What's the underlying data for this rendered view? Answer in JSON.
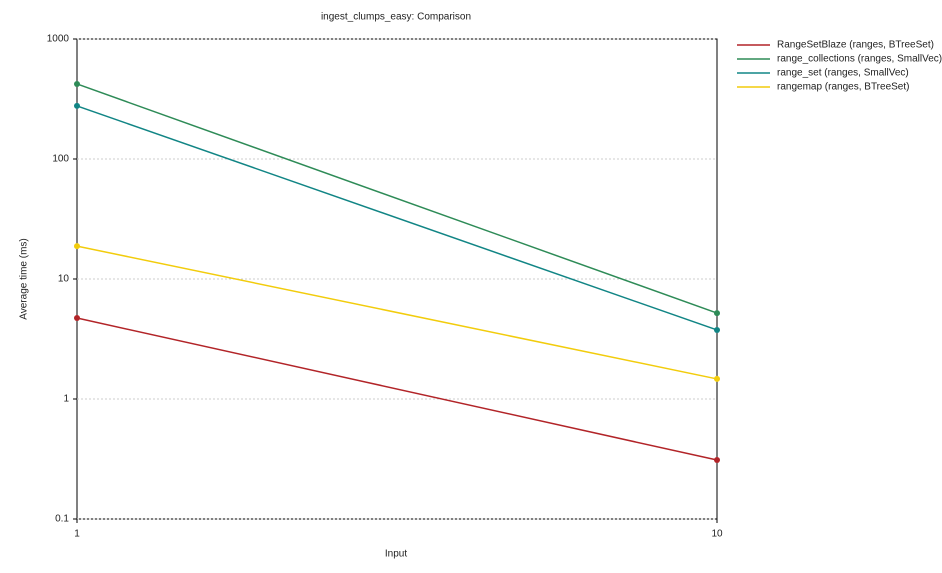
{
  "chart_data": {
    "type": "line",
    "title": "ingest_clumps_easy: Comparison",
    "x_label": "Input",
    "y_label": "Average time (ms)",
    "x": [
      1,
      10
    ],
    "series": [
      {
        "name": "RangeSetBlaze (ranges, BTreeSet)",
        "color": "#b22428",
        "values": [
          4.73,
          0.31
        ]
      },
      {
        "name": "range_collections (ranges, SmallVec)",
        "color": "#2e8b57",
        "values": [
          422,
          5.2
        ]
      },
      {
        "name": "range_set (ranges, SmallVec)",
        "color": "#118585",
        "values": [
          277,
          3.76
        ]
      },
      {
        "name": "rangemap (ranges, BTreeSet)",
        "color": "#f2cc0c",
        "values": [
          18.8,
          1.47
        ]
      }
    ],
    "xscale": "log",
    "yscale": "log",
    "xlim": [
      1,
      10
    ],
    "ylim": [
      0.1,
      1000
    ],
    "xticks": [
      1,
      10
    ],
    "yticks": [
      0.1,
      1,
      10,
      100,
      1000
    ],
    "grid": true,
    "legend": "right"
  }
}
